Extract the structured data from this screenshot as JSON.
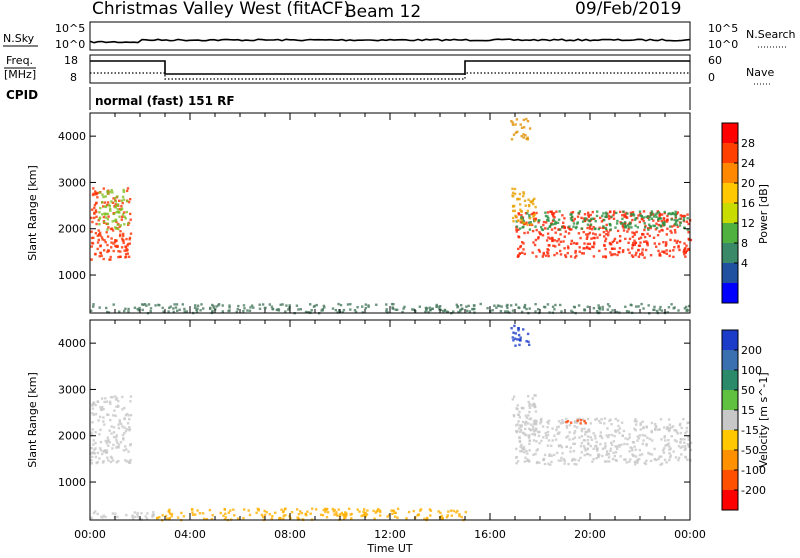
{
  "header": {
    "station": "Christmas Valley West (fitACF)",
    "beam": "Beam 12",
    "date": "09/Feb/2019"
  },
  "sky_panel": {
    "left_label": "N.Sky",
    "right_label": "N.Search",
    "left_ticks": [
      "10^5",
      "10^0"
    ],
    "right_ticks": [
      "10^5",
      "10^0"
    ]
  },
  "freq_panel": {
    "left_label_1": "Freq.",
    "left_label_2": "[MHz]",
    "right_label": "Nave",
    "left_ticks": [
      "18",
      "8"
    ],
    "right_ticks": [
      "60",
      "0"
    ],
    "freq_series": {
      "x": [
        0,
        3,
        3,
        15,
        15,
        24
      ],
      "y": [
        16,
        16,
        9.5,
        9.5,
        16,
        16
      ]
    },
    "nave_series": {
      "x": [
        0,
        3,
        3,
        15,
        15,
        24
      ],
      "y": [
        20,
        20,
        5,
        5,
        20,
        20
      ]
    }
  },
  "cpid": {
    "label": "CPID",
    "mode": "normal (fast) 151 RF"
  },
  "chart_data": [
    {
      "type": "heatmap",
      "name": "power-panel",
      "ylabel": "Slant Range [km]",
      "y_ticks": [
        "4000",
        "3000",
        "2000",
        "1000"
      ],
      "y_tick_values": [
        4000,
        3000,
        2000,
        1000
      ],
      "ylim": [
        180,
        4500
      ],
      "xlim": [
        0,
        24
      ],
      "colorbar": {
        "label": "Power [dB]",
        "ticks": [
          "28",
          "24",
          "20",
          "16",
          "12",
          "8",
          "4"
        ],
        "colors": [
          "#ff0000",
          "#ff4000",
          "#ff8800",
          "#ffc800",
          "#c8dc00",
          "#50b040",
          "#3a8a6a",
          "#2050a0",
          "#0000ff"
        ]
      },
      "regions": [
        {
          "t": [
            0.0,
            1.6
          ],
          "r": [
            1350,
            2900
          ],
          "color": "#ff3000"
        },
        {
          "t": [
            0.3,
            1.5
          ],
          "r": [
            2000,
            2900
          ],
          "color": "#80c020"
        },
        {
          "t": [
            16.8,
            17.6
          ],
          "r": [
            3950,
            4400
          ],
          "color": "#e09000"
        },
        {
          "t": [
            17.0,
            24.0
          ],
          "r": [
            1400,
            2400
          ],
          "color": "#ff2000"
        },
        {
          "t": [
            17.0,
            24.0
          ],
          "r": [
            2000,
            2400
          ],
          "color": "#2a9040"
        },
        {
          "t": [
            16.8,
            17.8
          ],
          "r": [
            2100,
            2900
          ],
          "color": "#e8a000"
        },
        {
          "t": [
            0.0,
            24.0
          ],
          "r": [
            200,
            400
          ],
          "color": "#4a7a60"
        }
      ]
    },
    {
      "type": "heatmap",
      "name": "velocity-panel",
      "xlabel": "Time UT",
      "ylabel": "Slant Range [km]",
      "x_ticks": [
        "00:00",
        "04:00",
        "08:00",
        "12:00",
        "16:00",
        "20:00",
        "00:00"
      ],
      "x_tick_values": [
        0,
        4,
        8,
        12,
        16,
        20,
        24
      ],
      "y_ticks": [
        "4000",
        "3000",
        "2000",
        "1000"
      ],
      "y_tick_values": [
        4000,
        3000,
        2000,
        1000
      ],
      "ylim": [
        180,
        4500
      ],
      "xlim": [
        0,
        24
      ],
      "colorbar": {
        "label": "Velocity [m s^-1]",
        "ticks": [
          "200",
          "100",
          "50",
          "15",
          "-15",
          "-50",
          "-100",
          "-200"
        ],
        "colors": [
          "#1a3cc8",
          "#3a70b0",
          "#2a8a6a",
          "#60c040",
          "#c8c8c8",
          "#ffc800",
          "#ff9000",
          "#ff5000",
          "#ff0000"
        ]
      },
      "regions": [
        {
          "t": [
            0.0,
            1.6
          ],
          "r": [
            1400,
            2900
          ],
          "color": "#c8c8c8"
        },
        {
          "t": [
            16.8,
            17.6
          ],
          "r": [
            3950,
            4400
          ],
          "color": "#1a3cc8"
        },
        {
          "t": [
            17.0,
            24.0
          ],
          "r": [
            1400,
            2400
          ],
          "color": "#c8c8c8"
        },
        {
          "t": [
            16.8,
            17.8
          ],
          "r": [
            2100,
            2900
          ],
          "color": "#c8c8c8"
        },
        {
          "t": [
            19.0,
            19.8
          ],
          "r": [
            2250,
            2400
          ],
          "color": "#ff4000"
        },
        {
          "t": [
            2.5,
            15.0
          ],
          "r": [
            200,
            450
          ],
          "color": "#ffb000"
        },
        {
          "t": [
            0.0,
            2.5
          ],
          "r": [
            200,
            400
          ],
          "color": "#c8c8c8"
        }
      ]
    }
  ]
}
